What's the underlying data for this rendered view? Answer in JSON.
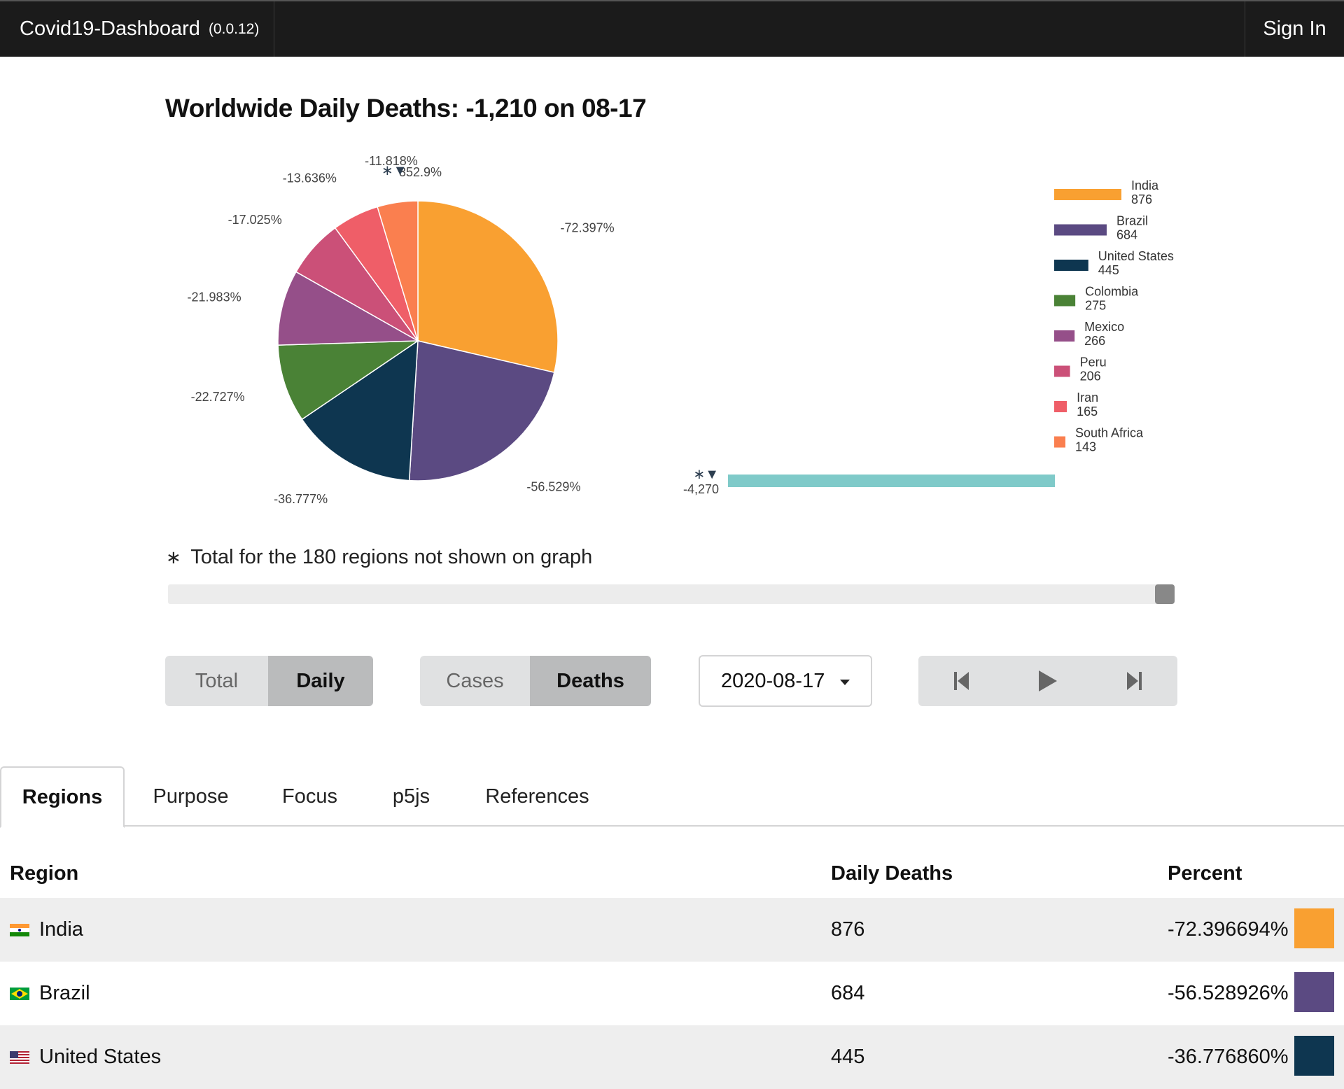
{
  "app": {
    "name": "Covid19-Dashboard",
    "version": "(0.0.12)",
    "sign_in": "Sign In"
  },
  "title": "Worldwide Daily Deaths: -1,210 on 08-17",
  "footnote": {
    "star": "∗",
    "text": "Total for the 180 regions not shown on graph"
  },
  "slider": {
    "value_fraction": 1.0
  },
  "controls": {
    "mode": {
      "options": [
        "Total",
        "Daily"
      ],
      "selected": "Daily"
    },
    "metric": {
      "options": [
        "Cases",
        "Deaths"
      ],
      "selected": "Deaths"
    },
    "date": "2020-08-17",
    "media": [
      "skip-back-icon",
      "play-icon",
      "skip-forward-icon"
    ]
  },
  "tabs": [
    "Regions",
    "Purpose",
    "Focus",
    "p5js",
    "References"
  ],
  "active_tab": "Regions",
  "table": {
    "headers": [
      "Region",
      "Daily Deaths",
      "Percent"
    ],
    "rows": [
      {
        "region": "India",
        "value": "876",
        "percent": "-72.396694%",
        "color": "#f9a031",
        "flag": "india-flag-icon"
      },
      {
        "region": "Brazil",
        "value": "684",
        "percent": "-56.528926%",
        "color": "#5b4a82",
        "flag": "brazil-flag-icon"
      },
      {
        "region": "United States",
        "value": "445",
        "percent": "-36.776860%",
        "color": "#0e3650",
        "flag": "us-flag-icon"
      }
    ]
  },
  "chart_data": {
    "type": "pie",
    "title": "Worldwide Daily Deaths: -1,210 on 08-17",
    "slices": [
      {
        "label": "India",
        "value": 876,
        "percent_label": "-72.397%",
        "color": "#f9a031"
      },
      {
        "label": "Brazil",
        "value": 684,
        "percent_label": "-56.529%",
        "color": "#5b4a82"
      },
      {
        "label": "United States",
        "value": 445,
        "percent_label": "-36.777%",
        "color": "#0e3650"
      },
      {
        "label": "Colombia",
        "value": 275,
        "percent_label": "-22.727%",
        "color": "#4a8236"
      },
      {
        "label": "Mexico",
        "value": 266,
        "percent_label": "-21.983%",
        "color": "#954f89"
      },
      {
        "label": "Peru",
        "value": 206,
        "percent_label": "-17.025%",
        "color": "#cb5078"
      },
      {
        "label": "Iran",
        "value": 165,
        "percent_label": "-13.636%",
        "color": "#ef5e68"
      },
      {
        "label": "South Africa",
        "value": 143,
        "percent_label": "-11.818%",
        "color": "#fa7f4f"
      },
      {
        "label": "∗▼",
        "value": -4270,
        "percent_label": "352.9%",
        "color": "#7fcac9"
      }
    ],
    "other": {
      "marker": "∗▼",
      "value": -4270,
      "value_label": "-4,270",
      "color": "#7fcac9"
    },
    "legend": [
      {
        "name": "India",
        "value": "876",
        "color": "#f9a031"
      },
      {
        "name": "Brazil",
        "value": "684",
        "color": "#5b4a82"
      },
      {
        "name": "United States",
        "value": "445",
        "color": "#0e3650"
      },
      {
        "name": "Colombia",
        "value": "275",
        "color": "#4a8236"
      },
      {
        "name": "Mexico",
        "value": "266",
        "color": "#954f89"
      },
      {
        "name": "Peru",
        "value": "206",
        "color": "#cb5078"
      },
      {
        "name": "Iran",
        "value": "165",
        "color": "#ef5e68"
      },
      {
        "name": "South Africa",
        "value": "143",
        "color": "#fa7f4f"
      }
    ]
  }
}
